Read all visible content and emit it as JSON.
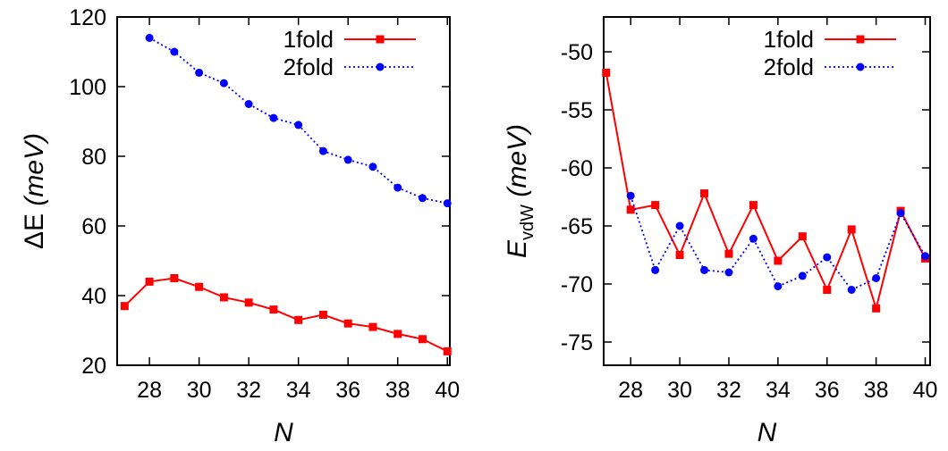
{
  "chart_data": [
    {
      "type": "line",
      "panel": "left",
      "ylabel_symbol": "ΔE",
      "ylabel_unit": "(meV)",
      "xlabel": "N",
      "xlim": [
        26.7,
        40.1
      ],
      "ylim": [
        20,
        120
      ],
      "xticks": [
        28,
        30,
        32,
        34,
        36,
        38,
        40
      ],
      "yticks": [
        20,
        40,
        60,
        80,
        100,
        120
      ],
      "legend_position": "top-right",
      "series": [
        {
          "name": "1fold",
          "color": "#ff0000",
          "style": "solid",
          "marker": "square",
          "x": [
            27,
            28,
            29,
            30,
            31,
            32,
            33,
            34,
            35,
            36,
            37,
            38,
            39,
            40
          ],
          "values": [
            37,
            44,
            45,
            42.5,
            39.5,
            38,
            36,
            33,
            34.5,
            32,
            31,
            29,
            27.5,
            24
          ]
        },
        {
          "name": "2fold",
          "color": "#0000ff",
          "style": "dotted",
          "marker": "circle",
          "x": [
            28,
            29,
            30,
            31,
            32,
            33,
            34,
            35,
            36,
            37,
            38,
            39,
            40
          ],
          "values": [
            114,
            110,
            104,
            101,
            95,
            91,
            89,
            81.5,
            79,
            77,
            71,
            68,
            66.5
          ]
        }
      ]
    },
    {
      "type": "line",
      "panel": "right",
      "ylabel_symbol": "E",
      "ylabel_subscript": "vdW",
      "ylabel_unit": "(meV)",
      "xlabel": "N",
      "xlim": [
        26.9,
        40.2
      ],
      "ylim": [
        -77,
        -47
      ],
      "xticks": [
        28,
        30,
        32,
        34,
        36,
        38,
        40
      ],
      "yticks": [
        -75,
        -70,
        -65,
        -60,
        -55,
        -50
      ],
      "legend_position": "top-right",
      "series": [
        {
          "name": "1fold",
          "color": "#ff0000",
          "style": "solid",
          "marker": "square",
          "x": [
            27,
            28,
            29,
            30,
            31,
            32,
            33,
            34,
            35,
            36,
            37,
            38,
            39,
            40
          ],
          "values": [
            -51.8,
            -63.6,
            -63.2,
            -67.5,
            -62.2,
            -67.4,
            -63.2,
            -68,
            -65.9,
            -70.5,
            -65.3,
            -72.1,
            -63.7,
            -67.8
          ]
        },
        {
          "name": "2fold",
          "color": "#0000ff",
          "style": "dotted",
          "marker": "circle",
          "x": [
            28,
            29,
            30,
            31,
            32,
            33,
            34,
            35,
            36,
            37,
            38,
            39,
            40
          ],
          "values": [
            -62.4,
            -68.8,
            -65,
            -68.8,
            -69,
            -66.1,
            -70.2,
            -69.3,
            -67.7,
            -70.5,
            -69.5,
            -63.9,
            -67.6
          ]
        }
      ]
    }
  ]
}
